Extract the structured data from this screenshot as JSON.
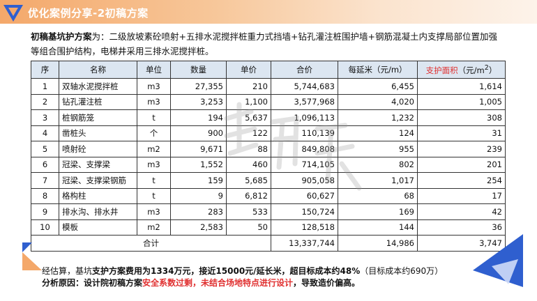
{
  "header": {
    "title": "优化案例分享-2初稿方案",
    "logo_icon": "triangle-logo-icon"
  },
  "intro": {
    "label": "初稿基坑护方案",
    "colon": "为：",
    "text": "二级放坡素砼喷射+五排水泥搅拌桩重力式挡墙+钻孔灌注桩围护墙+钢筋混凝土内支撑局部位置加强等组合围护结构，电梯井采用三排水泥搅拌桩。"
  },
  "table": {
    "headers": {
      "no": "序",
      "name": "名称",
      "unit": "单位",
      "qty": "数量",
      "price": "单价",
      "total": "合价",
      "per_meter": "每延米（元/m）",
      "area_prefix": "支护面积",
      "area_unit": "（元/m",
      "area_sup": "2",
      "area_close": "）"
    },
    "rows": [
      {
        "no": "1",
        "name": "双轴水泥搅拌桩",
        "unit": "m3",
        "qty": "27,355",
        "price": "210",
        "total": "5,744,683",
        "per_meter": "6,455",
        "area": "1,614"
      },
      {
        "no": "2",
        "name": "钻孔灌注桩",
        "unit": "m3",
        "qty": "3,253",
        "price": "1,100",
        "total": "3,577,968",
        "per_meter": "4,020",
        "area": "1,005"
      },
      {
        "no": "3",
        "name": "桩钢筋笼",
        "unit": "t",
        "qty": "194",
        "price": "5,637",
        "total": "1,096,113",
        "per_meter": "1,232",
        "area": "308"
      },
      {
        "no": "4",
        "name": "凿桩头",
        "unit": "个",
        "qty": "900",
        "price": "122",
        "total": "110,139",
        "per_meter": "124",
        "area": "31"
      },
      {
        "no": "5",
        "name": "喷射砼",
        "unit": "m2",
        "qty": "9,671",
        "price": "88",
        "total": "849,808",
        "per_meter": "955",
        "area": "239"
      },
      {
        "no": "6",
        "name": "冠梁、支撑梁",
        "unit": "m3",
        "qty": "1,552",
        "price": "460",
        "total": "714,105",
        "per_meter": "802",
        "area": "201"
      },
      {
        "no": "7",
        "name": "冠梁、支撑梁钢筋",
        "unit": "t",
        "qty": "159",
        "price": "5,685",
        "total": "905,058",
        "per_meter": "1,017",
        "area": "254"
      },
      {
        "no": "8",
        "name": "格构柱",
        "unit": "t",
        "qty": "9",
        "price": "6,812",
        "total": "60,627",
        "per_meter": "68",
        "area": "17"
      },
      {
        "no": "9",
        "name": "排水沟、排水井",
        "unit": "m3",
        "qty": "283",
        "price": "533",
        "total": "150,724",
        "per_meter": "169",
        "area": "42"
      },
      {
        "no": "10",
        "name": "模板",
        "unit": "m2",
        "qty": "2,583",
        "price": "50",
        "total": "128,518",
        "per_meter": "144",
        "area": "36"
      }
    ],
    "footer": {
      "label": "合计",
      "total": "13,337,744",
      "per_meter": "14,986",
      "area": "3,747"
    }
  },
  "summary": {
    "l1_a": "经估算，基坑",
    "l1_b": "支护方案费用为1334万元，接近15000元/延长米，超目标成本约48%",
    "l1_c": "（目标成本约690万）",
    "l2_a": "分析原因：设计院初稿方案",
    "l2_b": "安全系数过剩，未结合场地特点进行设计",
    "l2_c": "，导致造价偏高。"
  },
  "colors": {
    "header_gradient_start": "#f4a86a",
    "table_header_bg": "#dce6f1",
    "accent_red": "#e03030",
    "deco_blue": "#2f5fcf"
  }
}
